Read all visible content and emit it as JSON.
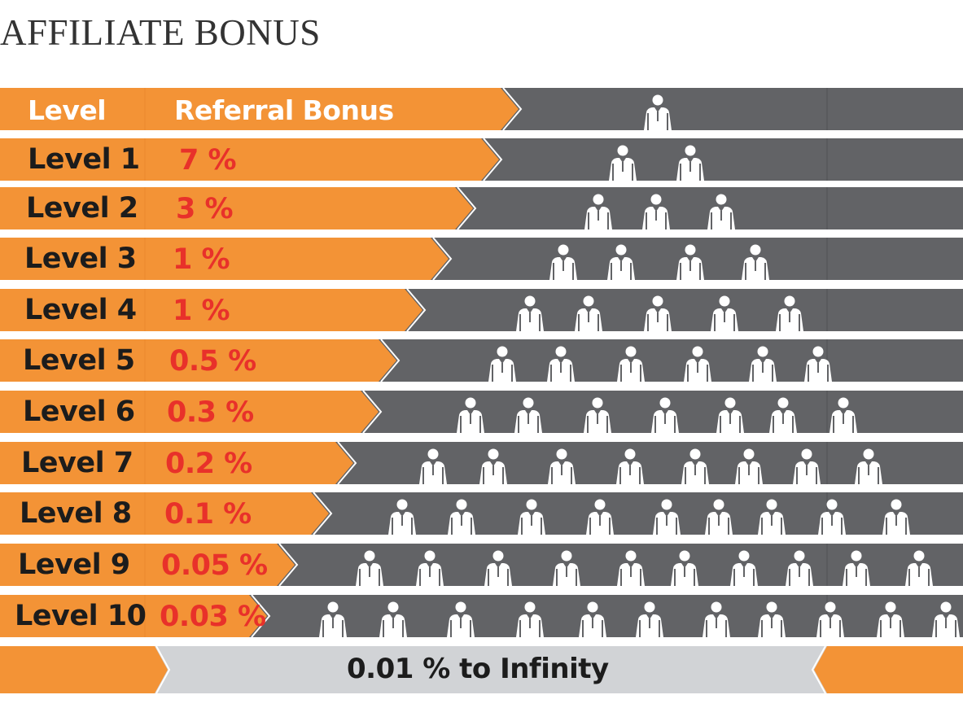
{
  "title": "AFFILIATE BONUS",
  "table": {
    "header": {
      "level": "Level",
      "bonus": "Referral Bonus"
    },
    "rows": [
      {
        "level": "Level 1",
        "bonus": "7 %"
      },
      {
        "level": "Level 2",
        "bonus": "3 %"
      },
      {
        "level": "Level 3",
        "bonus": "1 %"
      },
      {
        "level": "Level 4",
        "bonus": "1 %"
      },
      {
        "level": "Level 5",
        "bonus": "0.5 %"
      },
      {
        "level": "Level 6",
        "bonus": "0.3 %"
      },
      {
        "level": "Level 7",
        "bonus": "0.2 %"
      },
      {
        "level": "Level 8",
        "bonus": "0.1 %"
      },
      {
        "level": "Level 9",
        "bonus": "0.05 %"
      },
      {
        "level": "Level 10",
        "bonus": "0.03 %"
      }
    ],
    "footer": "0.01 % to Infinity"
  },
  "colors": {
    "orange": "#f39336",
    "gray": "#626366",
    "footer_gray": "#d1d3d6",
    "bonus_red": "#e8312a"
  },
  "icons": {
    "person": "person-icon"
  }
}
